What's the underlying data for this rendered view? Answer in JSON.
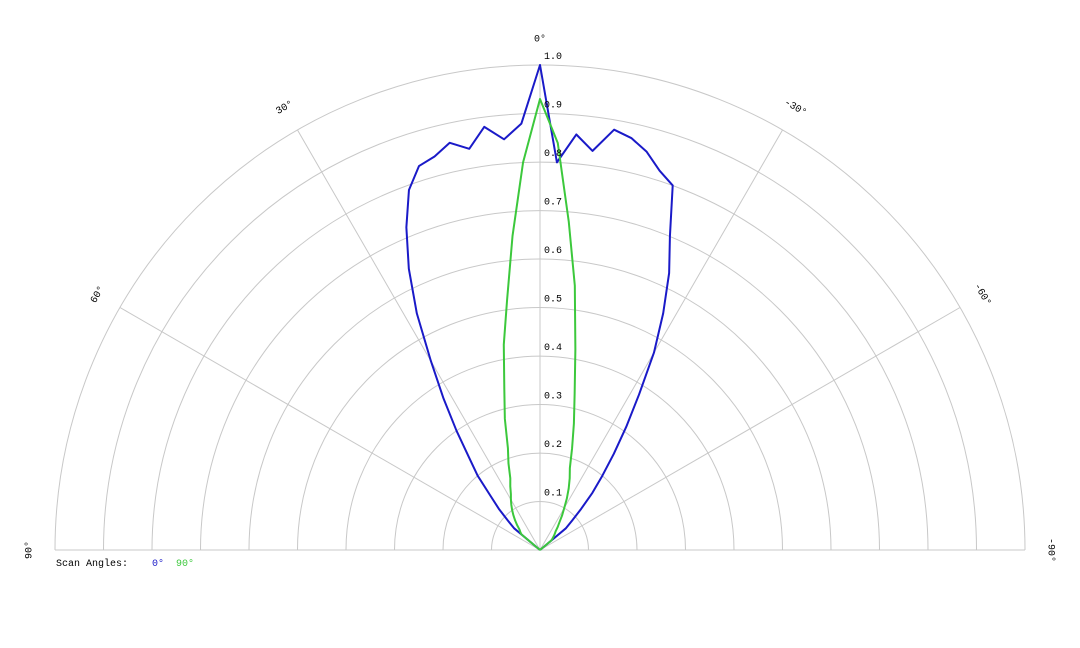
{
  "chart_data": {
    "type": "polar",
    "rlim": [
      0,
      1
    ],
    "rticks": [
      0.1,
      0.2,
      0.3,
      0.4,
      0.5,
      0.6,
      0.7,
      0.8,
      0.9,
      {
        "value": 1,
        "label": "1.0"
      }
    ],
    "thetalim": [
      -90,
      90
    ],
    "thetaticks": [
      {
        "value": 90,
        "label": "90°"
      },
      {
        "value": 60,
        "label": "60°"
      },
      {
        "value": 30,
        "label": "30°"
      },
      {
        "value": 0,
        "label": "0°"
      },
      {
        "value": -30,
        "label": "-30°"
      },
      {
        "value": -60,
        "label": "-60°"
      },
      {
        "value": -90,
        "label": "-90°"
      }
    ],
    "legend_title": "Scan Angles:",
    "theta": [
      50,
      47.5,
      45,
      42.5,
      40,
      37.5,
      35,
      32.5,
      30,
      27.5,
      25,
      22.5,
      20,
      17.5,
      15,
      12.5,
      10,
      7.5,
      5,
      2.5,
      0,
      -2.5,
      -5,
      -7.5,
      -10,
      -12.5,
      -15,
      -17.5,
      -20,
      -22.5,
      -25,
      -27.5,
      -30,
      -32.5,
      -35,
      -37.5,
      -40,
      -42.5,
      -45,
      -47.5,
      -50
    ],
    "series": [
      {
        "name": "0°",
        "color": "#1a1ac8",
        "values": [
          0.07,
          0.09,
          0.12,
          0.15,
          0.2,
          0.24,
          0.3,
          0.37,
          0.45,
          0.55,
          0.64,
          0.72,
          0.79,
          0.83,
          0.84,
          0.86,
          0.84,
          0.88,
          0.85,
          0.88,
          1.0,
          0.8,
          0.86,
          0.83,
          0.88,
          0.87,
          0.85,
          0.82,
          0.8,
          0.7,
          0.63,
          0.55,
          0.47,
          0.38,
          0.31,
          0.25,
          0.2,
          0.16,
          0.12,
          0.09,
          0.07
        ]
      },
      {
        "name": "90°",
        "color": "#3cc83c",
        "values": [
          0.05,
          0.055,
          0.06,
          0.07,
          0.08,
          0.09,
          0.1,
          0.11,
          0.12,
          0.13,
          0.145,
          0.16,
          0.19,
          0.22,
          0.28,
          0.34,
          0.43,
          0.52,
          0.65,
          0.8,
          0.93,
          0.84,
          0.68,
          0.55,
          0.42,
          0.33,
          0.27,
          0.22,
          0.18,
          0.16,
          0.14,
          0.12,
          0.1,
          0.085,
          0.07,
          0.06,
          0.05,
          0.045,
          0.04,
          0.035,
          0.03
        ]
      }
    ]
  }
}
